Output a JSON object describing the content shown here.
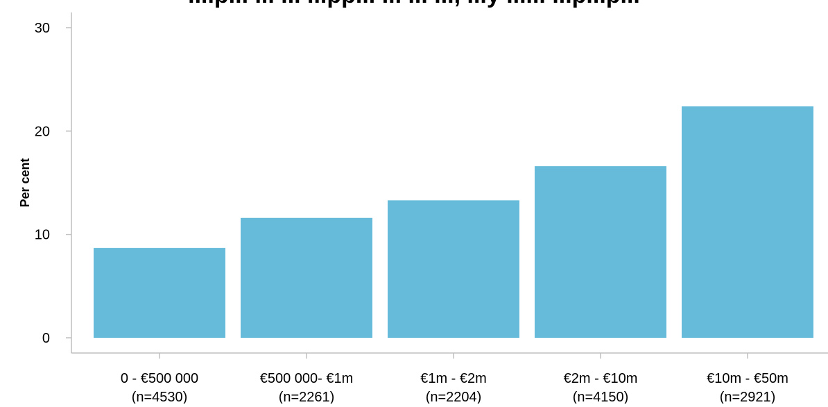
{
  "chart_data": {
    "type": "bar",
    "title": "...ip... ... ... ...pp... ... ... ..., ...y ...... ...p...p...",
    "xlabel": "",
    "ylabel": "Per cent",
    "ylim": [
      0,
      30
    ],
    "yticks": [
      0,
      10,
      20,
      30
    ],
    "grid": false,
    "bar_color": "#65bbd9",
    "categories": [
      {
        "line1": "0 - €500 000",
        "line2": "(n=4530)"
      },
      {
        "line1": "€500 000- €1m",
        "line2": "(n=2261)"
      },
      {
        "line1": "€1m - €2m",
        "line2": "(n=2204)"
      },
      {
        "line1": "€2m - €10m",
        "line2": "(n=4150)"
      },
      {
        "line1": "€10m - €50m",
        "line2": "(n=2921)"
      }
    ],
    "values": [
      8.7,
      11.6,
      13.3,
      16.6,
      22.4
    ]
  }
}
